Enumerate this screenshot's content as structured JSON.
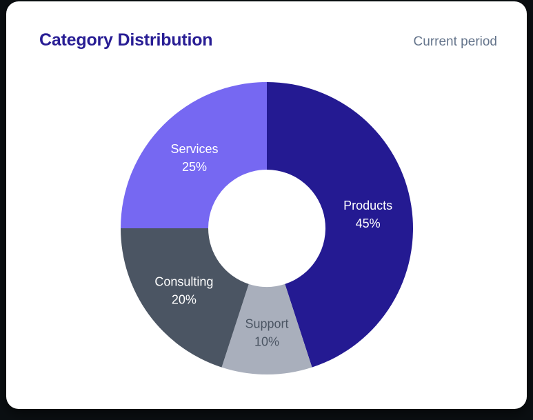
{
  "card": {
    "title": "Category Distribution",
    "period_label": "Current period"
  },
  "colors": {
    "page_background": "#0B0F12",
    "card_background": "#FFFFFF",
    "title_text": "#281D94",
    "muted_text": "#64748B"
  },
  "chart_data": {
    "type": "pie",
    "subtype": "donut",
    "title": "Category Distribution",
    "annotation": "Current period",
    "start_angle": "12-o-clock",
    "direction": "clockwise",
    "inner_radius_ratio": 0.4,
    "legend_position": "none",
    "labels_position": "inside-mid-ring",
    "order_note": "segments listed in clockwise draw order starting at 12 o'clock",
    "segments": [
      {
        "label": "Products",
        "value": 45,
        "color": "#241A92",
        "label_color": "#FFFFFF"
      },
      {
        "label": "Support",
        "value": 10,
        "color": "#A9AFBC",
        "label_color": "#4B5563"
      },
      {
        "label": "Consulting",
        "value": 20,
        "color": "#4B5563",
        "label_color": "#FFFFFF"
      },
      {
        "label": "Services",
        "value": 25,
        "color": "#7668F2",
        "label_color": "#FFFFFF"
      }
    ]
  }
}
